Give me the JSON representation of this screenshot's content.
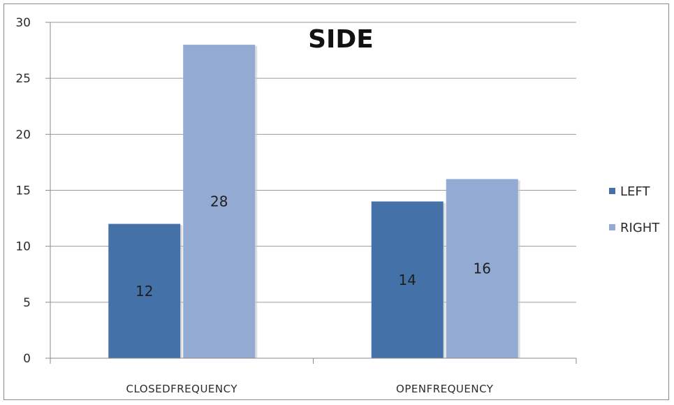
{
  "chart_data": {
    "type": "bar",
    "title": "SIDE",
    "categories": [
      "CLOSEDFREQUENCY",
      "OPENFREQUENCY"
    ],
    "series": [
      {
        "name": "LEFT",
        "values": [
          12,
          14
        ],
        "color": "#4472a8"
      },
      {
        "name": "RIGHT",
        "values": [
          28,
          16
        ],
        "color": "#93abd3"
      }
    ],
    "ylim": [
      0,
      30
    ],
    "yticks": [
      0,
      5,
      10,
      15,
      20,
      25,
      30
    ],
    "grid": true,
    "legend": "right"
  }
}
